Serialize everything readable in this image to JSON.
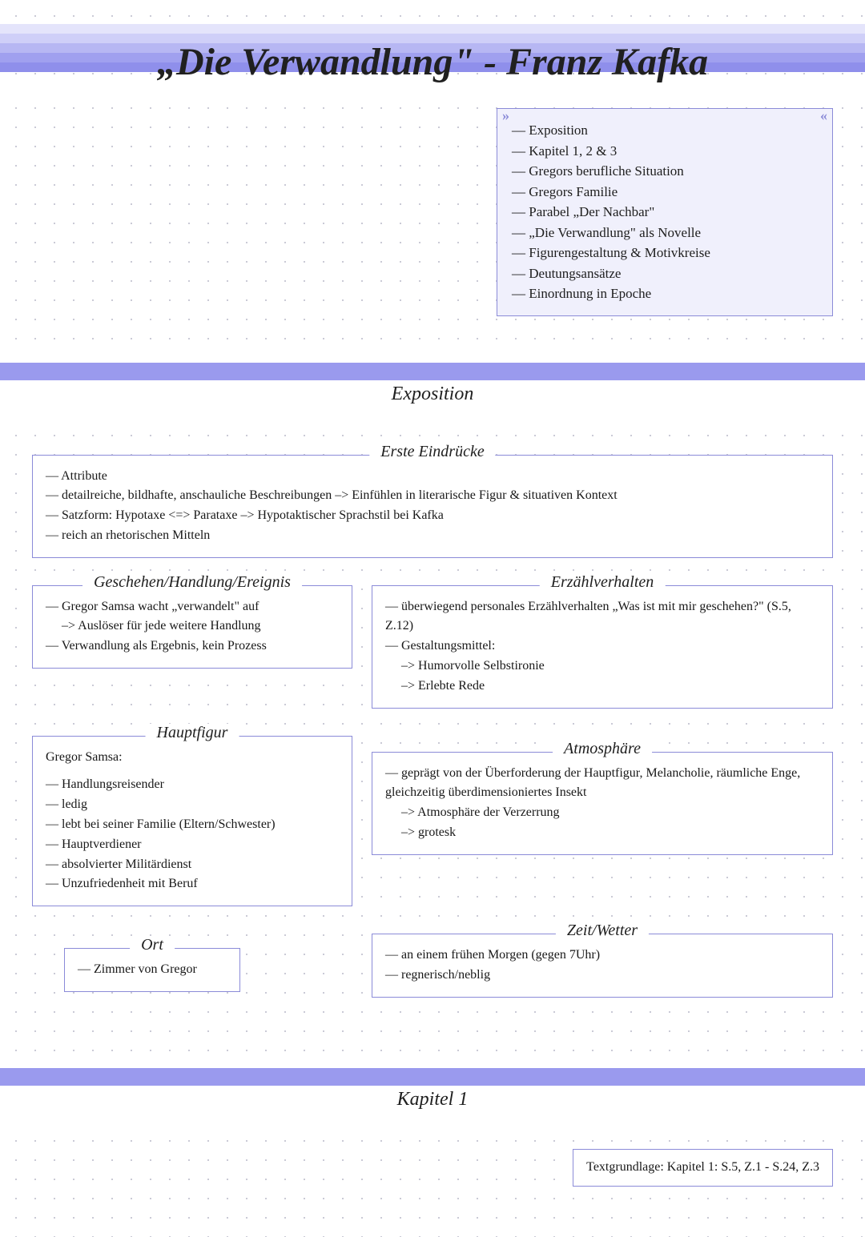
{
  "colors": {
    "stripe1": "#e4e4fb",
    "stripe2": "#cfcff8",
    "stripe3": "#b7b7f3",
    "stripe4": "#a0a0ef",
    "stripe5": "#8f8feb",
    "border": "#8b8bd8",
    "toc_bg": "#f0f0fc",
    "band": "#9a9aee",
    "text": "#202020"
  },
  "title": "„Die Verwandlung\" - Franz Kafka",
  "toc": [
    "— Exposition",
    "— Kapitel 1, 2 & 3",
    "— Gregors berufliche Situation",
    "— Gregors Familie",
    "— Parabel „Der Nachbar\"",
    "— „Die Verwandlung\" als Novelle",
    "— Figurengestaltung & Motivkreise",
    "— Deutungsansätze",
    "— Einordnung in Epoche"
  ],
  "section1": {
    "title": "Exposition",
    "sub1_title": "Erste Eindrücke",
    "sub1_lines": [
      "— Attribute",
      "— detailreiche, bildhafte, anschauliche Beschreibungen –> Einfühlen in literarische Figur & situativen Kontext",
      "— Satzform: Hypotaxe <=> Parataxe –> Hypotaktischer Sprachstil bei Kafka",
      "— reich an rhetorischen Mitteln"
    ],
    "geschehen_title": "Geschehen/Handlung/Ereignis",
    "geschehen_lines": [
      "— Gregor Samsa wacht „verwandelt\" auf",
      "   –> Auslöser für jede weitere Handlung",
      "— Verwandlung als Ergebnis, kein Prozess"
    ],
    "erzaehl_title": "Erzählverhalten",
    "erzaehl_lines": [
      "— überwiegend personales Erzählverhalten „Was ist mit mir geschehen?\" (S.5, Z.12)",
      "— Gestaltungsmittel:",
      "   –> Humorvolle Selbstironie",
      "   –> Erlebte Rede"
    ],
    "hauptfigur_title": "Hauptfigur",
    "hauptfigur_intro": "Gregor Samsa:",
    "hauptfigur_lines": [
      "— Handlungsreisender",
      "— ledig",
      "— lebt bei seiner Familie (Eltern/Schwester)",
      "— Hauptverdiener",
      "— absolvierter Militärdienst",
      "— Unzufriedenheit mit Beruf"
    ],
    "atmos_title": "Atmosphäre",
    "atmos_lines": [
      "— geprägt von der Überforderung der Hauptfigur, Melancholie, räumliche Enge, gleichzeitig überdimensioniertes Insekt",
      "   –> Atmosphäre der Verzerrung",
      "   –> grotesk"
    ],
    "ort_title": "Ort",
    "ort_line": "— Zimmer von Gregor",
    "zeit_title": "Zeit/Wetter",
    "zeit_lines": [
      "— an einem frühen Morgen (gegen 7Uhr)",
      "— regnerisch/neblig"
    ]
  },
  "section2": {
    "title": "Kapitel 1",
    "textgrundlage": "Textgrundlage: Kapitel 1: S.5, Z.1 - S.24, Z.3"
  }
}
